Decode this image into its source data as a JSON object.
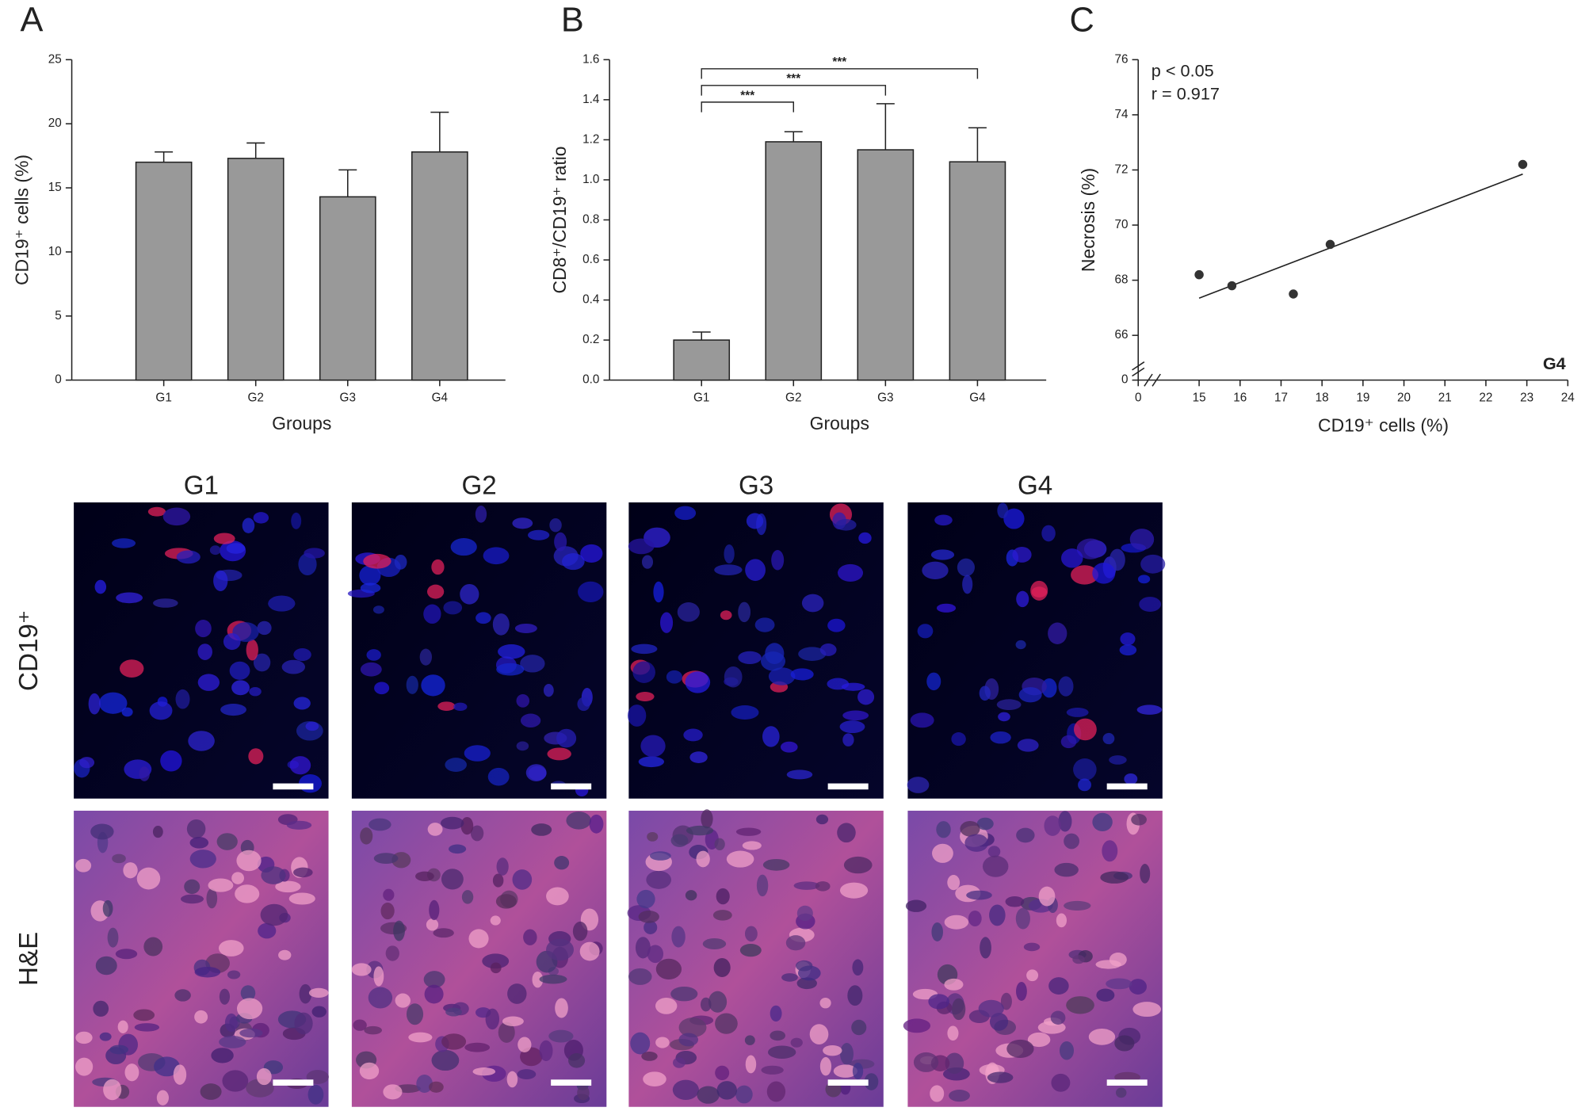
{
  "chart_data": [
    {
      "type": "bar",
      "panel": "A",
      "x_label": "Groups",
      "y_label": "CD19⁺ cells (%)",
      "categories": [
        "G1",
        "G2",
        "G3",
        "G4"
      ],
      "values": [
        17.0,
        17.3,
        14.3,
        17.8
      ],
      "errors": [
        0.8,
        1.2,
        2.1,
        3.1
      ],
      "color": "#999999",
      "ylim": [
        0,
        25
      ],
      "yticks": [
        0,
        5,
        10,
        15,
        20,
        25
      ]
    },
    {
      "type": "bar",
      "panel": "B",
      "x_label": "Groups",
      "y_label": "CD8⁺/CD19⁺ ratio",
      "categories": [
        "G1",
        "G2",
        "G3",
        "G4"
      ],
      "values": [
        0.2,
        1.19,
        1.15,
        1.09
      ],
      "errors": [
        0.04,
        0.05,
        0.23,
        0.17
      ],
      "color": "#999999",
      "ylim": [
        0,
        1.6
      ],
      "yticks": [
        {
          "value": 0,
          "label": "0.0"
        },
        0.2,
        0.4,
        0.6,
        0.8,
        {
          "value": 1,
          "label": "1.0"
        },
        1.2,
        1.4,
        1.6
      ],
      "comparisons": [
        {
          "pair": [
            0,
            1
          ],
          "label": "***"
        },
        {
          "pair": [
            0,
            2
          ],
          "label": "***"
        },
        {
          "pair": [
            0,
            3
          ],
          "label": "***"
        }
      ]
    },
    {
      "type": "scatter",
      "panel": "C",
      "x_label": "CD19⁺ cells (%)",
      "y_label": "Necrosis (%)",
      "x": [
        15.0,
        15.8,
        17.3,
        18.2,
        22.9
      ],
      "y": [
        68.2,
        67.8,
        67.5,
        69.3,
        72.2
      ],
      "color": "#333333",
      "fit": {
        "x": [
          15.0,
          22.9
        ],
        "y": [
          67.35,
          71.85
        ]
      },
      "xlim": [
        14.5,
        24
      ],
      "ylim": [
        65,
        76
      ],
      "axis_break": true,
      "xticks": [
        0,
        15,
        16,
        17,
        18,
        19,
        20,
        21,
        22,
        23,
        24
      ],
      "yticks": [
        0,
        66,
        68,
        70,
        72,
        74,
        76
      ],
      "annotations": [
        "p < 0.05",
        "r = 0.917"
      ],
      "corner_label": "G4"
    }
  ],
  "micrographs": {
    "columns": [
      "G1",
      "G2",
      "G3",
      "G4"
    ],
    "rows": [
      "CD19⁺",
      "H&E"
    ]
  }
}
